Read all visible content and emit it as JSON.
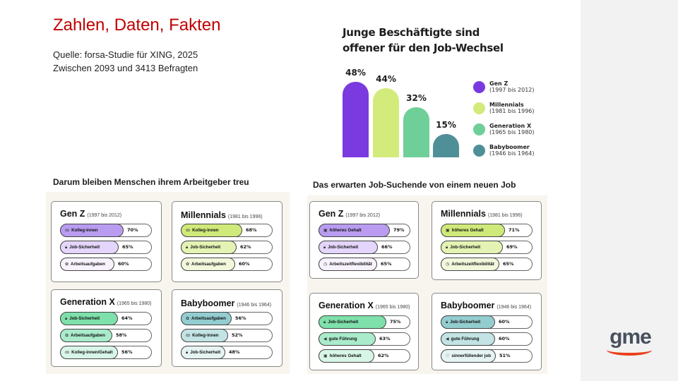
{
  "header": {
    "title": "Zahlen, Daten, Fakten",
    "source": "Quelle: forsa-Studie für XING, 2025",
    "respondents": "Zwischen 2093 und 3413 Befragten"
  },
  "logo": {
    "text": "gme"
  },
  "chart_data": {
    "type": "bar",
    "title": "Junge Beschäftigte sind offener für den Job-Wechsel",
    "title_line1": "Junge Beschäftigte sind",
    "title_line2": "offener für den Job-Wechsel",
    "categories": [
      "Gen Z",
      "Millennials",
      "Generation X",
      "Babyboomer"
    ],
    "years": [
      "(1997 bis 2012)",
      "(1981 bis 1996)",
      "(1965 bis 1980)",
      "(1946 bis 1964)"
    ],
    "values": [
      48,
      44,
      32,
      15
    ],
    "labels": [
      "48%",
      "44%",
      "32%",
      "15%"
    ],
    "colors": [
      "#7a3ae0",
      "#d3eb7b",
      "#6fcf98",
      "#4f8f98"
    ],
    "ylim": [
      0,
      50
    ],
    "legend": "right"
  },
  "sections": [
    {
      "heading": "Darum bleiben Menschen ihrem Arbeitgeber treu",
      "cards": [
        {
          "name": "Gen Z",
          "years": "(1997 bis 2012)",
          "items": [
            {
              "icon": "people",
              "label": "Kolleg-innen",
              "pct": 70,
              "text": "70%"
            },
            {
              "icon": "lock",
              "label": "Job-Sicherheit",
              "pct": 65,
              "text": "65%"
            },
            {
              "icon": "puzzle",
              "label": "Arbeitsaufgaben",
              "pct": 60,
              "text": "60%"
            }
          ]
        },
        {
          "name": "Millennials",
          "years": "(1981 bis 1996)",
          "items": [
            {
              "icon": "people",
              "label": "Kolleg-innen",
              "pct": 68,
              "text": "68%"
            },
            {
              "icon": "lock",
              "label": "Job-Sicherheit",
              "pct": 62,
              "text": "62%"
            },
            {
              "icon": "puzzle",
              "label": "Arbeitsaufgaben",
              "pct": 60,
              "text": "60%"
            }
          ]
        },
        {
          "name": "Generation X",
          "years": "(1965 bis 1980)",
          "items": [
            {
              "icon": "lock",
              "label": "Job-Sicherheit",
              "pct": 64,
              "text": "64%"
            },
            {
              "icon": "puzzle",
              "label": "Arbeitsaufgaben",
              "pct": 58,
              "text": "58%"
            },
            {
              "icon": "people",
              "label": "Kolleg-innen/Gehalt",
              "pct": 56,
              "text": "56%"
            }
          ]
        },
        {
          "name": "Babyboomer",
          "years": "(1946 bis 1964)",
          "items": [
            {
              "icon": "puzzle",
              "label": "Arbeitsaufgaben",
              "pct": 56,
              "text": "56%"
            },
            {
              "icon": "people",
              "label": "Kolleg-innen",
              "pct": 52,
              "text": "52%"
            },
            {
              "icon": "lock",
              "label": "Job-Sicherheit",
              "pct": 48,
              "text": "48%"
            }
          ]
        }
      ]
    },
    {
      "heading": "Das erwarten Job-Suchende von einem neuen Job",
      "cards": [
        {
          "name": "Gen Z",
          "years": "(1997 bis 2012)",
          "items": [
            {
              "icon": "money",
              "label": "höheres Gehalt",
              "pct": 79,
              "text": "79%"
            },
            {
              "icon": "lock",
              "label": "Job-Sicherheit",
              "pct": 66,
              "text": "66%"
            },
            {
              "icon": "clock",
              "label": "Arbeitszeitflexibilität",
              "pct": 65,
              "text": "65%"
            }
          ]
        },
        {
          "name": "Millennials",
          "years": "(1981 bis 1996)",
          "items": [
            {
              "icon": "money",
              "label": "höheres Gehalt",
              "pct": 71,
              "text": "71%"
            },
            {
              "icon": "lock",
              "label": "Job-Sicherheit",
              "pct": 69,
              "text": "69%"
            },
            {
              "icon": "clock",
              "label": "Arbeitszeitflexibilität",
              "pct": 65,
              "text": "65%"
            }
          ]
        },
        {
          "name": "Generation X",
          "years": "(1965 bis 1980)",
          "items": [
            {
              "icon": "lock",
              "label": "Job-Sicherheit",
              "pct": 75,
              "text": "75%"
            },
            {
              "icon": "megaphone",
              "label": "gute Führung",
              "pct": 63,
              "text": "63%"
            },
            {
              "icon": "money",
              "label": "höheres Gehalt",
              "pct": 62,
              "text": "62%"
            }
          ]
        },
        {
          "name": "Babyboomer",
          "years": "(1946 bis 1964)",
          "items": [
            {
              "icon": "lock",
              "label": "Job-Sicherheit",
              "pct": 60,
              "text": "60%"
            },
            {
              "icon": "megaphone",
              "label": "gute Führung",
              "pct": 60,
              "text": "60%"
            },
            {
              "icon": "heart",
              "label": "sinnerfüllender job",
              "pct": 51,
              "text": "51%"
            }
          ]
        }
      ]
    }
  ],
  "shades": [
    [
      "#b99cf0",
      "#e3d5fb",
      "#f8f2fe"
    ],
    [
      "#cfe97a",
      "#e4f3b3",
      "#f1f8dc"
    ],
    [
      "#7ee0aa",
      "#a9ebcb",
      "#d8f6e8"
    ],
    [
      "#93cdd0",
      "#c3e3e4",
      "#e6f3f3"
    ]
  ]
}
